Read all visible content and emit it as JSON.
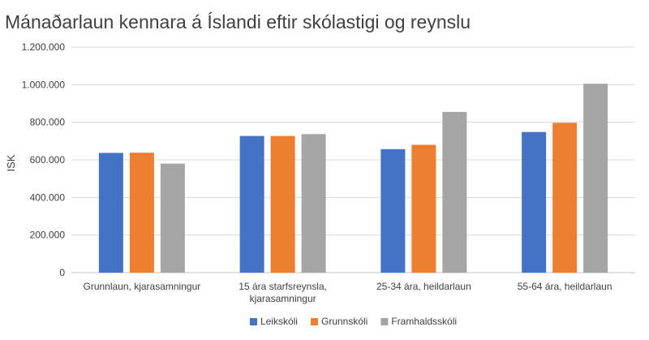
{
  "chart_data": {
    "type": "bar",
    "title": "Mánaðarlaun kennara á Íslandi eftir skólastigi og reynslu",
    "ylabel": "ISK",
    "xlabel": "",
    "ylim": [
      0,
      1200000
    ],
    "yticks": [
      0,
      200000,
      400000,
      600000,
      800000,
      1000000,
      1200000
    ],
    "ytick_labels": [
      "0",
      "200.000",
      "400.000",
      "600.000",
      "800.000",
      "1.000.000",
      "1.200.000"
    ],
    "grid": true,
    "legend_position": "bottom",
    "categories": [
      [
        "Grunnlaun, kjarasamningur"
      ],
      [
        "15 ára starfsreynsla,",
        "kjarasamningur"
      ],
      [
        "25-34 ára, heildarlaun"
      ],
      [
        "55-64 ára, heildarlaun"
      ]
    ],
    "series": [
      {
        "name": "Leikskóli",
        "color": "#4472c4",
        "values": [
          637000,
          727000,
          657000,
          748000
        ]
      },
      {
        "name": "Grunnskóli",
        "color": "#ed7d31",
        "values": [
          638000,
          727000,
          680000,
          797000
        ]
      },
      {
        "name": "Framhaldsskóli",
        "color": "#a5a5a5",
        "values": [
          580000,
          737000,
          855000,
          1005000
        ]
      }
    ]
  }
}
